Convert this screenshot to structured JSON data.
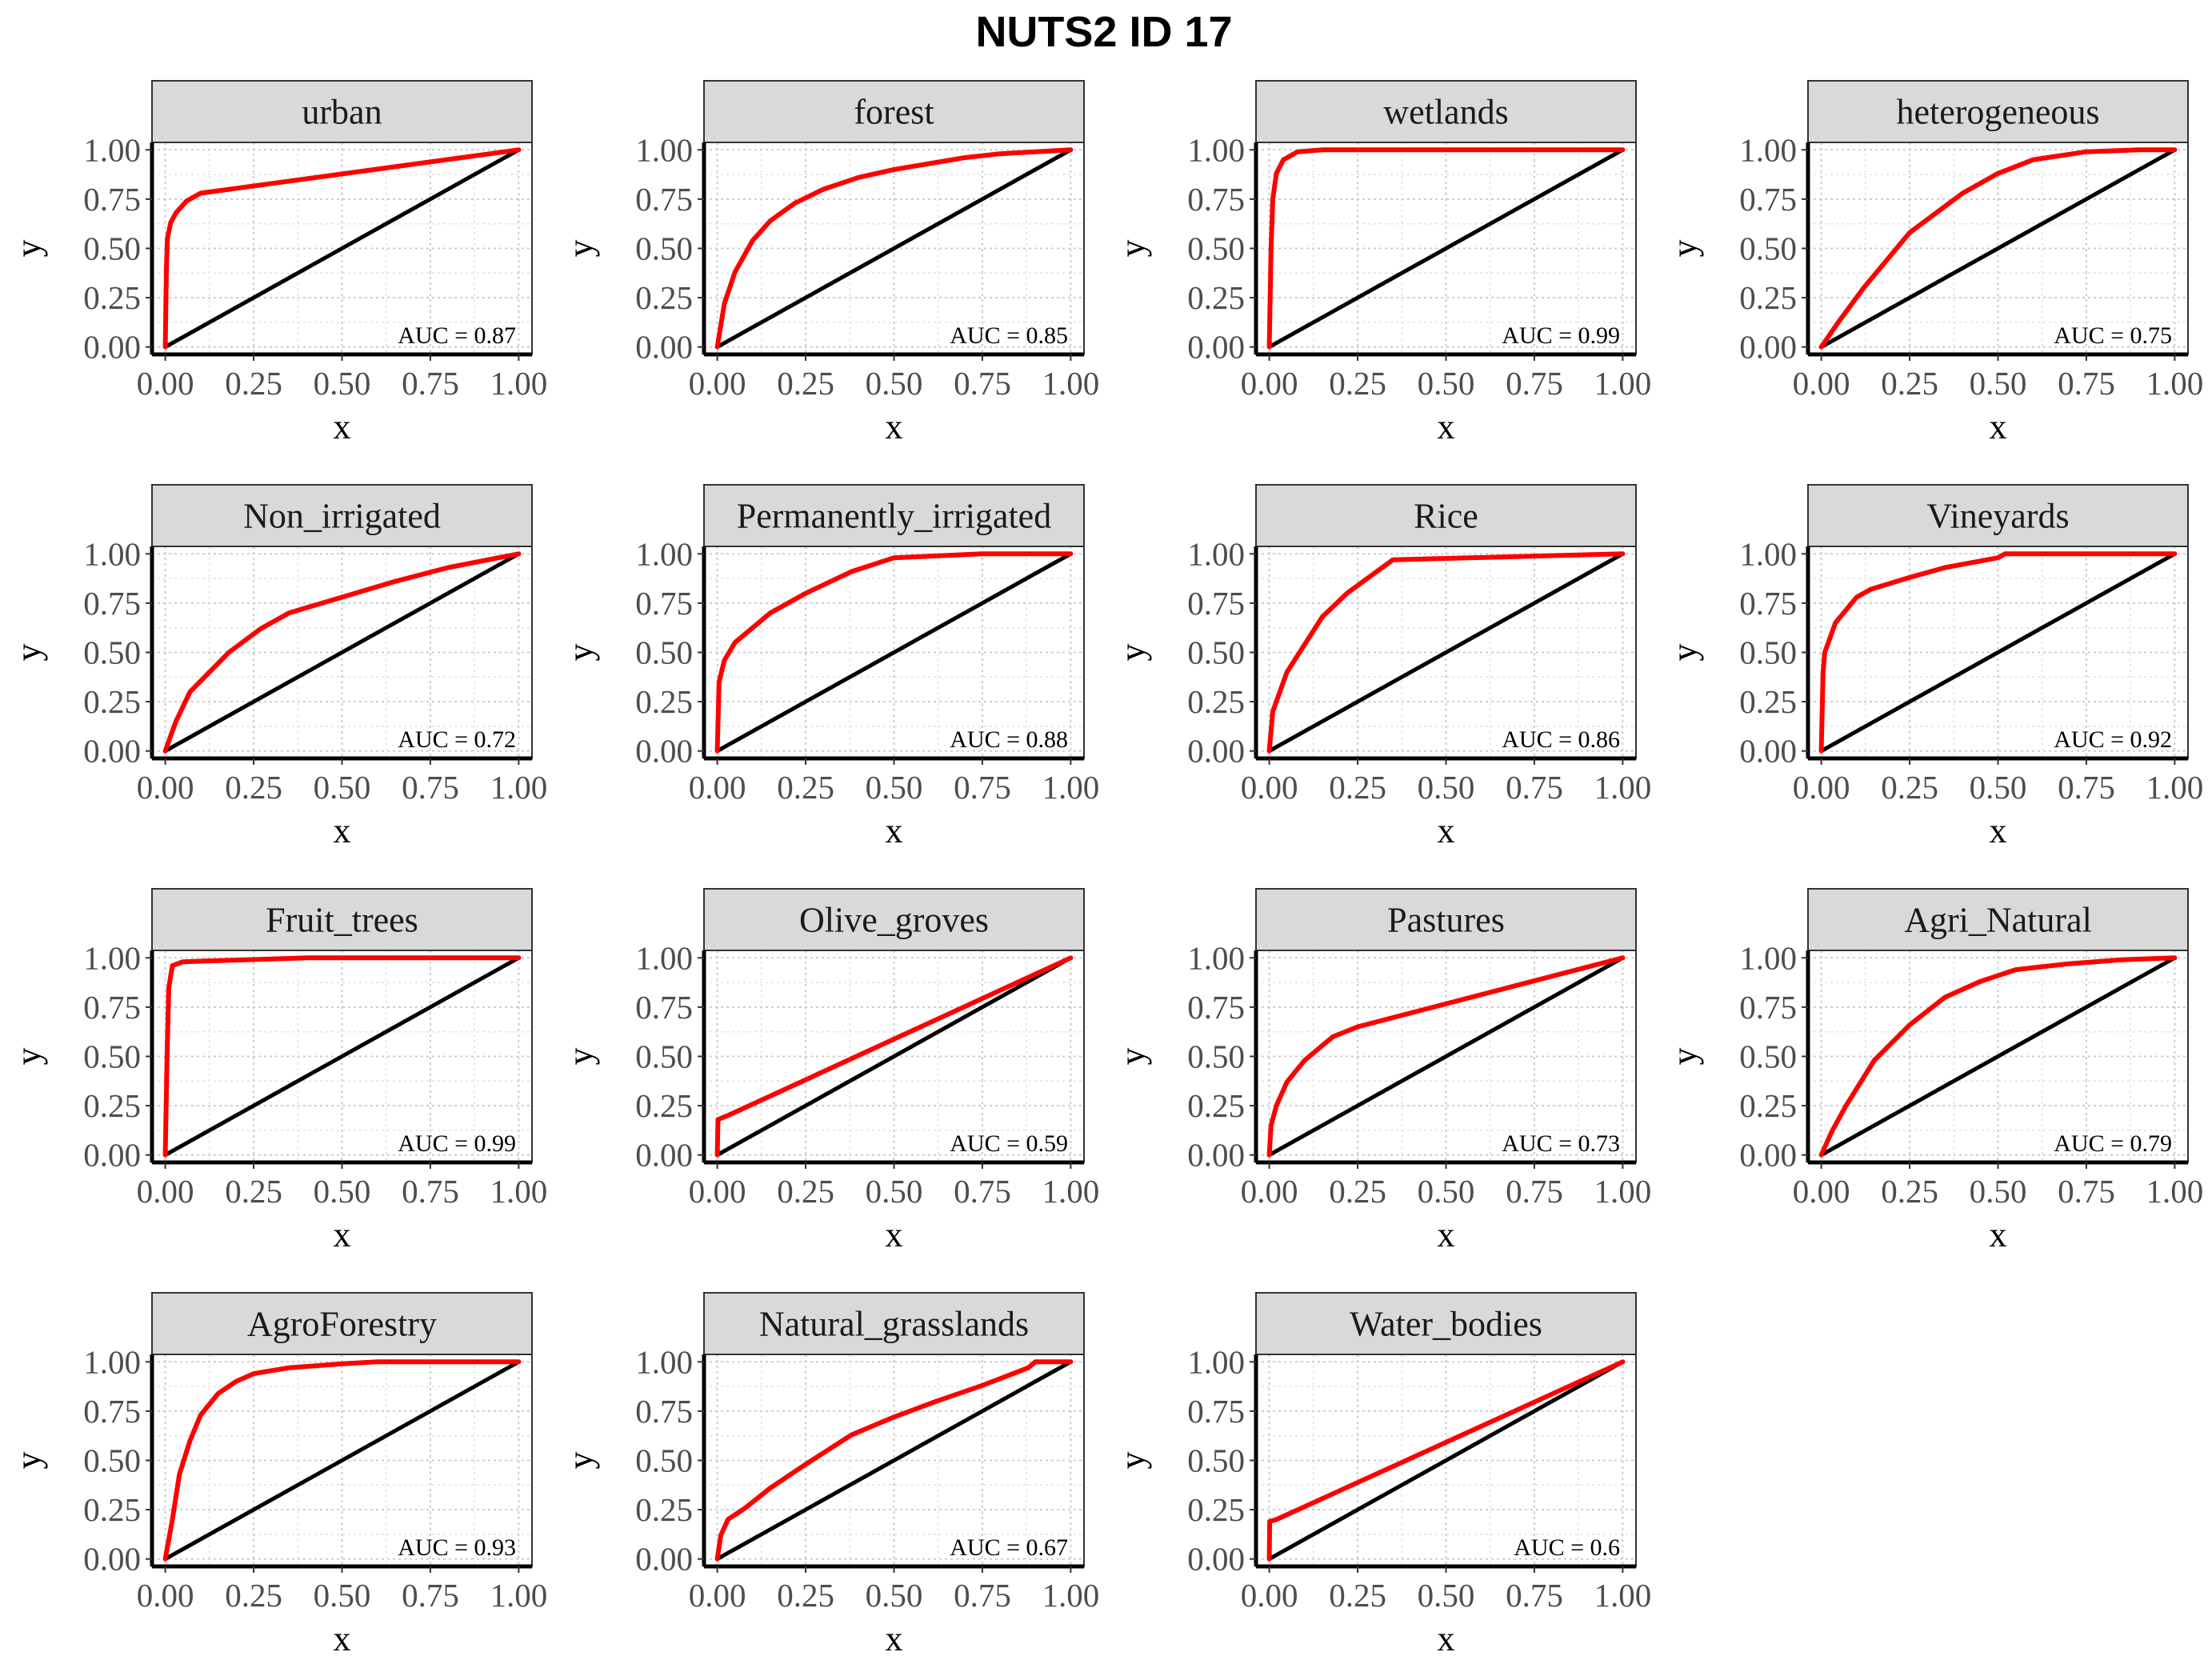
{
  "title": "NUTS2 ID 17",
  "colors": {
    "roc": "#ff0000",
    "diagonal": "#000000",
    "strip_fill": "#d9d9d9",
    "grid": "#c8c8c8"
  },
  "chart_data": {
    "type": "line",
    "facet_layout": {
      "ncol": 4,
      "nrow": 4
    },
    "xlabel": "x",
    "ylabel": "y",
    "xlim": [
      0,
      1
    ],
    "ylim": [
      0,
      1
    ],
    "x_ticks": [
      "0.00",
      "0.25",
      "0.50",
      "0.75",
      "1.00"
    ],
    "y_ticks": [
      "0.00",
      "0.25",
      "0.50",
      "0.75",
      "1.00"
    ],
    "grid": true,
    "reference_line": [
      [
        0,
        0
      ],
      [
        1,
        1
      ]
    ],
    "panels": [
      {
        "name": "urban",
        "auc_label": "AUC = 0.87",
        "points": [
          [
            0,
            0
          ],
          [
            0.003,
            0.4
          ],
          [
            0.006,
            0.55
          ],
          [
            0.015,
            0.63
          ],
          [
            0.03,
            0.68
          ],
          [
            0.06,
            0.74
          ],
          [
            0.1,
            0.78
          ],
          [
            1,
            1
          ]
        ]
      },
      {
        "name": "forest",
        "auc_label": "AUC = 0.85",
        "points": [
          [
            0,
            0
          ],
          [
            0.02,
            0.22
          ],
          [
            0.05,
            0.38
          ],
          [
            0.1,
            0.54
          ],
          [
            0.15,
            0.64
          ],
          [
            0.22,
            0.73
          ],
          [
            0.3,
            0.8
          ],
          [
            0.4,
            0.86
          ],
          [
            0.5,
            0.9
          ],
          [
            0.6,
            0.93
          ],
          [
            0.7,
            0.96
          ],
          [
            0.8,
            0.98
          ],
          [
            0.9,
            0.99
          ],
          [
            1,
            1
          ]
        ]
      },
      {
        "name": "wetlands",
        "auc_label": "AUC = 0.99",
        "points": [
          [
            0,
            0
          ],
          [
            0.005,
            0.5
          ],
          [
            0.01,
            0.75
          ],
          [
            0.02,
            0.88
          ],
          [
            0.04,
            0.95
          ],
          [
            0.08,
            0.99
          ],
          [
            0.15,
            1
          ],
          [
            1,
            1
          ]
        ]
      },
      {
        "name": "heterogeneous",
        "auc_label": "AUC = 0.75",
        "points": [
          [
            0,
            0
          ],
          [
            0.05,
            0.13
          ],
          [
            0.12,
            0.3
          ],
          [
            0.25,
            0.58
          ],
          [
            0.4,
            0.78
          ],
          [
            0.5,
            0.88
          ],
          [
            0.6,
            0.95
          ],
          [
            0.75,
            0.99
          ],
          [
            0.9,
            1
          ],
          [
            1,
            1
          ]
        ]
      },
      {
        "name": "Non_irrigated",
        "auc_label": "AUC = 0.72",
        "points": [
          [
            0,
            0
          ],
          [
            0.03,
            0.15
          ],
          [
            0.07,
            0.3
          ],
          [
            0.18,
            0.5
          ],
          [
            0.27,
            0.62
          ],
          [
            0.35,
            0.7
          ],
          [
            0.5,
            0.78
          ],
          [
            0.65,
            0.86
          ],
          [
            0.8,
            0.93
          ],
          [
            1,
            1
          ]
        ]
      },
      {
        "name": "Permanently_irrigated",
        "auc_label": "AUC = 0.88",
        "points": [
          [
            0,
            0
          ],
          [
            0.005,
            0.35
          ],
          [
            0.02,
            0.46
          ],
          [
            0.05,
            0.55
          ],
          [
            0.15,
            0.7
          ],
          [
            0.25,
            0.8
          ],
          [
            0.38,
            0.91
          ],
          [
            0.5,
            0.98
          ],
          [
            0.75,
            1
          ],
          [
            1,
            1
          ]
        ]
      },
      {
        "name": "Rice",
        "auc_label": "AUC = 0.86",
        "points": [
          [
            0,
            0
          ],
          [
            0.01,
            0.2
          ],
          [
            0.05,
            0.4
          ],
          [
            0.15,
            0.68
          ],
          [
            0.22,
            0.8
          ],
          [
            0.35,
            0.97
          ],
          [
            1,
            1
          ]
        ]
      },
      {
        "name": "Vineyards",
        "auc_label": "AUC = 0.92",
        "points": [
          [
            0,
            0
          ],
          [
            0.005,
            0.4
          ],
          [
            0.01,
            0.5
          ],
          [
            0.04,
            0.65
          ],
          [
            0.1,
            0.78
          ],
          [
            0.14,
            0.82
          ],
          [
            0.25,
            0.88
          ],
          [
            0.35,
            0.93
          ],
          [
            0.5,
            0.98
          ],
          [
            0.52,
            1
          ],
          [
            1,
            1
          ]
        ]
      },
      {
        "name": "Fruit_trees",
        "auc_label": "AUC = 0.99",
        "points": [
          [
            0,
            0
          ],
          [
            0.005,
            0.5
          ],
          [
            0.01,
            0.85
          ],
          [
            0.02,
            0.96
          ],
          [
            0.05,
            0.98
          ],
          [
            0.4,
            1
          ],
          [
            1,
            1
          ]
        ]
      },
      {
        "name": "Olive_groves",
        "auc_label": "AUC = 0.59",
        "points": [
          [
            0,
            0
          ],
          [
            0.002,
            0.18
          ],
          [
            0.03,
            0.2
          ],
          [
            1,
            1
          ]
        ]
      },
      {
        "name": "Pastures",
        "auc_label": "AUC = 0.73",
        "points": [
          [
            0,
            0
          ],
          [
            0.005,
            0.15
          ],
          [
            0.02,
            0.25
          ],
          [
            0.05,
            0.37
          ],
          [
            0.1,
            0.48
          ],
          [
            0.18,
            0.6
          ],
          [
            0.25,
            0.65
          ],
          [
            1,
            1
          ]
        ]
      },
      {
        "name": "Agri_Natural",
        "auc_label": "AUC = 0.79",
        "points": [
          [
            0,
            0
          ],
          [
            0.03,
            0.12
          ],
          [
            0.07,
            0.25
          ],
          [
            0.15,
            0.48
          ],
          [
            0.25,
            0.66
          ],
          [
            0.35,
            0.8
          ],
          [
            0.45,
            0.88
          ],
          [
            0.55,
            0.94
          ],
          [
            0.7,
            0.97
          ],
          [
            0.85,
            0.99
          ],
          [
            1,
            1
          ]
        ]
      },
      {
        "name": "AgroForestry",
        "auc_label": "AUC = 0.93",
        "points": [
          [
            0,
            0
          ],
          [
            0.02,
            0.2
          ],
          [
            0.04,
            0.43
          ],
          [
            0.07,
            0.6
          ],
          [
            0.1,
            0.73
          ],
          [
            0.15,
            0.84
          ],
          [
            0.2,
            0.9
          ],
          [
            0.25,
            0.94
          ],
          [
            0.35,
            0.97
          ],
          [
            0.5,
            0.99
          ],
          [
            0.6,
            1
          ],
          [
            1,
            1
          ]
        ]
      },
      {
        "name": "Natural_grasslands",
        "auc_label": "AUC = 0.67",
        "points": [
          [
            0,
            0
          ],
          [
            0.01,
            0.12
          ],
          [
            0.03,
            0.2
          ],
          [
            0.08,
            0.26
          ],
          [
            0.15,
            0.36
          ],
          [
            0.25,
            0.48
          ],
          [
            0.38,
            0.63
          ],
          [
            0.5,
            0.72
          ],
          [
            0.62,
            0.8
          ],
          [
            0.75,
            0.88
          ],
          [
            0.88,
            0.97
          ],
          [
            0.9,
            1
          ],
          [
            1,
            1
          ]
        ]
      },
      {
        "name": "Water_bodies",
        "auc_label": "AUC = 0.6",
        "points": [
          [
            0,
            0
          ],
          [
            0.001,
            0.19
          ],
          [
            0.02,
            0.2
          ],
          [
            1,
            1
          ]
        ]
      }
    ]
  }
}
